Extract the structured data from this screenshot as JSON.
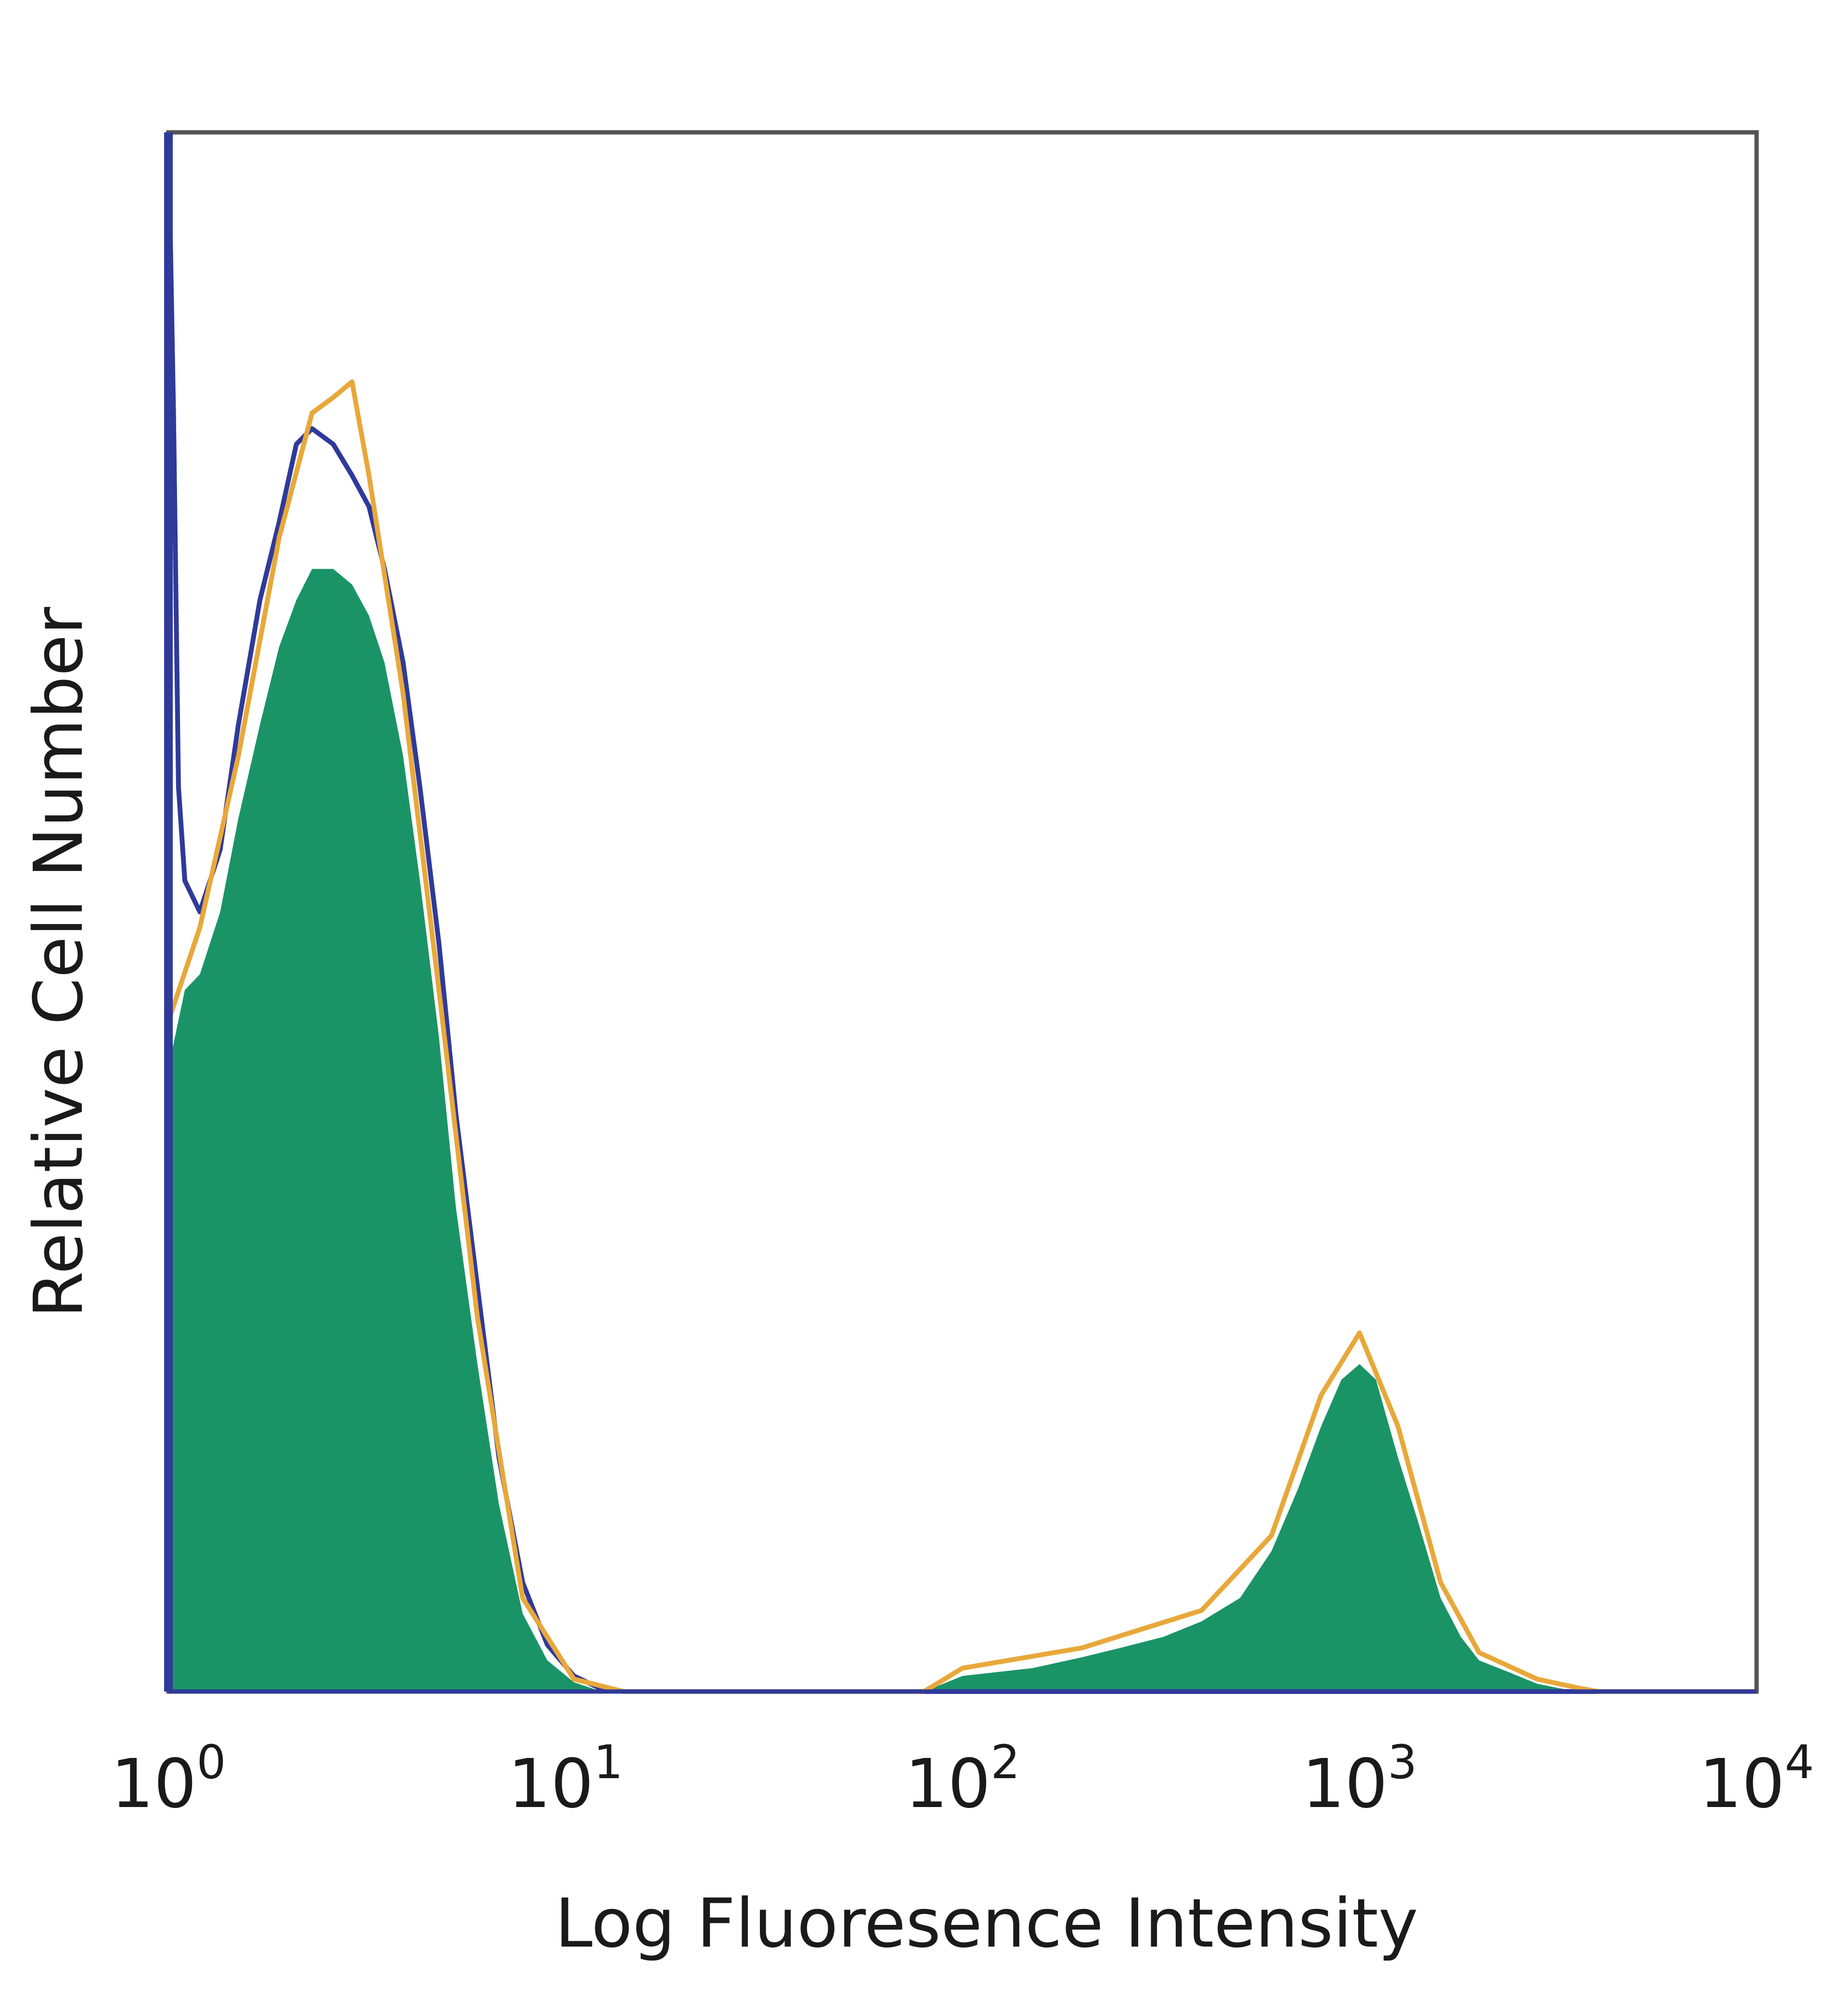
{
  "chart_data": {
    "type": "area",
    "xlabel": "Log Fluoresence Intensity",
    "ylabel": "Relative Cell Number",
    "x_scale": "log",
    "xlim": [
      1,
      10000
    ],
    "ylim": [
      0,
      100
    ],
    "y_ticks_shown": false,
    "grid": false,
    "x_ticks": [
      {
        "base": "10",
        "exp": "0",
        "value": 1
      },
      {
        "base": "10",
        "exp": "1",
        "value": 10
      },
      {
        "base": "10",
        "exp": "2",
        "value": 100
      },
      {
        "base": "10",
        "exp": "3",
        "value": 1000
      },
      {
        "base": "10",
        "exp": "4",
        "value": 10000
      }
    ],
    "series": [
      {
        "style": "filled",
        "color": "#1a9466",
        "points": [
          [
            1.0,
            40
          ],
          [
            1.1,
            45
          ],
          [
            1.2,
            46
          ],
          [
            1.35,
            50
          ],
          [
            1.5,
            56
          ],
          [
            1.7,
            62
          ],
          [
            1.9,
            67
          ],
          [
            2.1,
            70
          ],
          [
            2.3,
            72
          ],
          [
            2.6,
            72
          ],
          [
            2.9,
            71
          ],
          [
            3.2,
            69
          ],
          [
            3.5,
            66
          ],
          [
            3.9,
            60
          ],
          [
            4.3,
            52
          ],
          [
            4.8,
            42
          ],
          [
            5.3,
            31
          ],
          [
            6.0,
            21
          ],
          [
            6.8,
            12
          ],
          [
            7.8,
            5
          ],
          [
            9.0,
            2
          ],
          [
            10.5,
            0.6
          ],
          [
            12,
            0.1
          ],
          [
            15,
            0
          ],
          [
            80,
            0
          ],
          [
            100,
            1.0
          ],
          [
            150,
            1.5
          ],
          [
            200,
            2.2
          ],
          [
            250,
            2.8
          ],
          [
            320,
            3.5
          ],
          [
            400,
            4.5
          ],
          [
            500,
            6
          ],
          [
            600,
            9
          ],
          [
            700,
            13
          ],
          [
            800,
            17
          ],
          [
            900,
            20
          ],
          [
            1000,
            21
          ],
          [
            1100,
            20
          ],
          [
            1250,
            15
          ],
          [
            1400,
            11
          ],
          [
            1600,
            6
          ],
          [
            1800,
            3.5
          ],
          [
            2000,
            2
          ],
          [
            2400,
            1.2
          ],
          [
            2800,
            0.5
          ],
          [
            3200,
            0.2
          ],
          [
            3600,
            0
          ],
          [
            10000,
            0
          ]
        ]
      },
      {
        "style": "line",
        "color": "#2f3a9a",
        "points": [
          [
            1.0,
            100
          ],
          [
            1.03,
            82
          ],
          [
            1.06,
            58
          ],
          [
            1.1,
            52
          ],
          [
            1.2,
            50
          ],
          [
            1.35,
            54
          ],
          [
            1.5,
            62
          ],
          [
            1.7,
            70
          ],
          [
            1.9,
            75
          ],
          [
            2.1,
            80
          ],
          [
            2.3,
            81
          ],
          [
            2.6,
            80
          ],
          [
            2.9,
            78
          ],
          [
            3.2,
            76
          ],
          [
            3.5,
            72
          ],
          [
            3.9,
            66
          ],
          [
            4.3,
            58
          ],
          [
            4.8,
            48
          ],
          [
            5.3,
            37
          ],
          [
            6.0,
            26
          ],
          [
            6.8,
            15
          ],
          [
            7.8,
            7
          ],
          [
            9.0,
            3
          ],
          [
            10.5,
            1
          ],
          [
            12,
            0.3
          ],
          [
            14,
            0
          ],
          [
            10000,
            0
          ]
        ]
      },
      {
        "style": "line",
        "color": "#e8a83a",
        "points": [
          [
            1.0,
            43
          ],
          [
            1.2,
            49
          ],
          [
            1.5,
            60
          ],
          [
            1.9,
            74
          ],
          [
            2.3,
            82
          ],
          [
            2.6,
            83
          ],
          [
            2.9,
            84
          ],
          [
            3.2,
            78
          ],
          [
            3.9,
            64
          ],
          [
            4.8,
            45
          ],
          [
            6.0,
            24
          ],
          [
            7.8,
            6
          ],
          [
            10.5,
            0.8
          ],
          [
            14,
            0
          ],
          [
            80,
            0
          ],
          [
            100,
            1.5
          ],
          [
            200,
            2.8
          ],
          [
            400,
            5.2
          ],
          [
            600,
            10
          ],
          [
            800,
            19
          ],
          [
            1000,
            23
          ],
          [
            1250,
            17
          ],
          [
            1600,
            7
          ],
          [
            2000,
            2.5
          ],
          [
            2800,
            0.8
          ],
          [
            3600,
            0.2
          ],
          [
            4000,
            0
          ],
          [
            10000,
            0
          ]
        ]
      }
    ]
  }
}
